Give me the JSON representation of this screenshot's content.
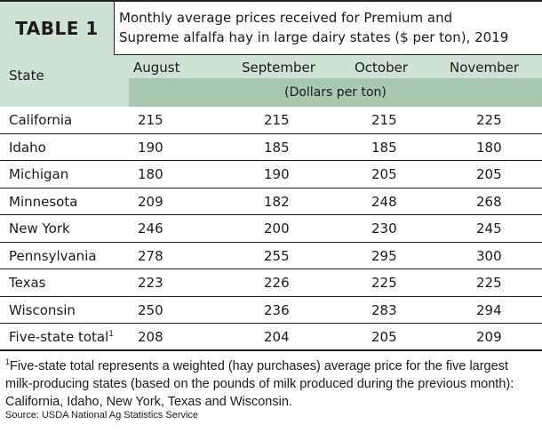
{
  "table_label": "TABLE 1",
  "title_line1": "Monthly average prices received for Premium and",
  "title_line2": "Supreme alfalfa hay in large dairy states ($ per ton), 2019",
  "headers": {
    "state": "State",
    "months": [
      "August",
      "September",
      "October",
      "November"
    ],
    "unit": "(Dollars per ton)"
  },
  "rows": [
    {
      "state": "California",
      "values": [
        "215",
        "215",
        "215",
        "225"
      ]
    },
    {
      "state": "Idaho",
      "values": [
        "190",
        "185",
        "185",
        "180"
      ]
    },
    {
      "state": "Michigan",
      "values": [
        "180",
        "190",
        "205",
        "205"
      ]
    },
    {
      "state": "Minnesota",
      "values": [
        "209",
        "182",
        "248",
        "268"
      ]
    },
    {
      "state": "New York",
      "values": [
        "246",
        "200",
        "230",
        "245"
      ]
    },
    {
      "state": "Pennsylvania",
      "values": [
        "278",
        "255",
        "295",
        "300"
      ]
    },
    {
      "state": "Texas",
      "values": [
        "223",
        "226",
        "225",
        "225"
      ]
    },
    {
      "state": "Wisconsin",
      "values": [
        "250",
        "236",
        "283",
        "294"
      ]
    },
    {
      "state": "Five-state total",
      "sup": "1",
      "values": [
        "208",
        "204",
        "205",
        "209"
      ]
    }
  ],
  "footnote": {
    "marker": "1",
    "text": "Five-state total represents a weighted (hay purchases) average price for the five largest milk-producing states (based on the pounds of milk produced during the previous month): California, Idaho, New York, Texas and Wisconsin."
  },
  "source": "Source: USDA National Ag Statistics Service",
  "colors": {
    "header_fill": "#cfe3d5",
    "unit_band_fill": "#a8c8b0",
    "rule": "#222222"
  }
}
